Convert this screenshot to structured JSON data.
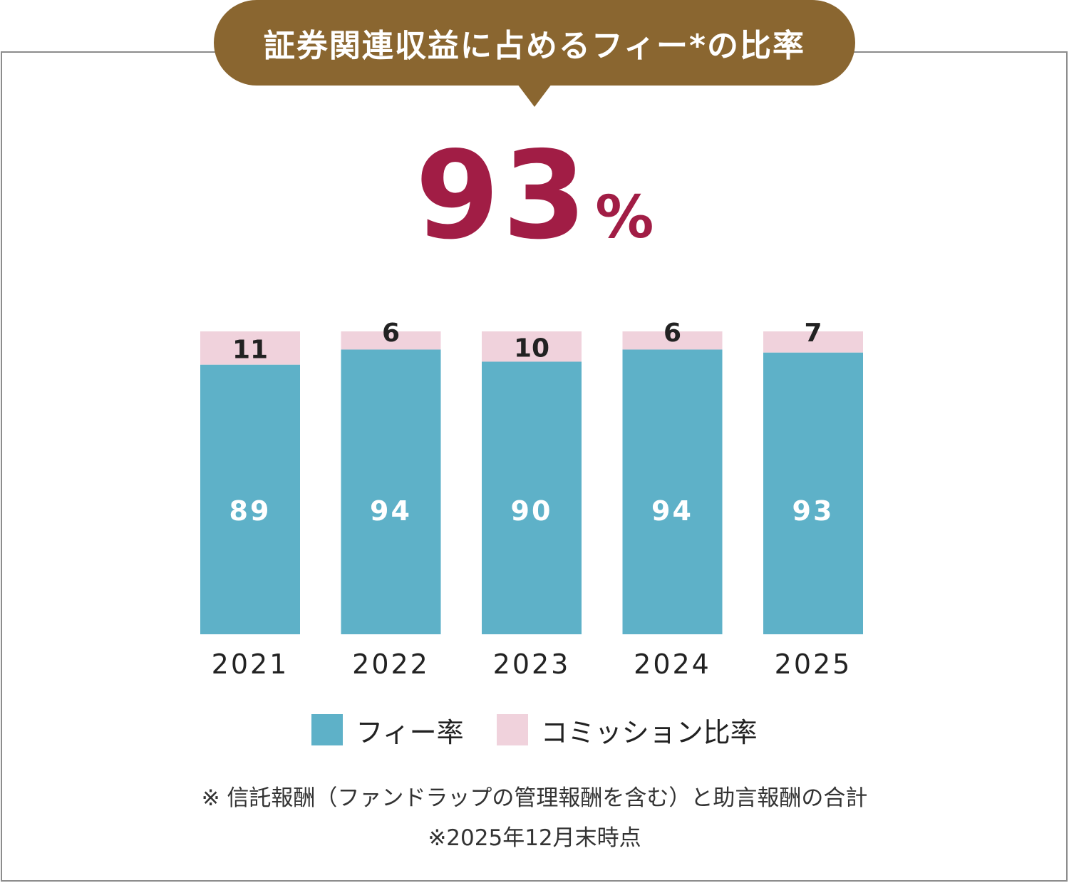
{
  "title": "証券関連収益に占めるフィー*の比率",
  "headline": {
    "value": "93",
    "unit": "%"
  },
  "colors": {
    "fee": "#5eb1c8",
    "commission": "#f0d2dc",
    "accent": "#a11d45",
    "bubble": "#8a6630"
  },
  "legend": {
    "fee_label": "フィー率",
    "commission_label": "コミッション比率"
  },
  "notes": {
    "line1": "※ 信託報酬（ファンドラップの管理報酬を含む）と助言報酬の合計",
    "line2": "※2025年12月末時点"
  },
  "chart_data": {
    "type": "bar",
    "stacked": true,
    "categories": [
      "2021",
      "2022",
      "2023",
      "2024",
      "2025"
    ],
    "series": [
      {
        "name": "フィー率",
        "values": [
          89,
          94,
          90,
          94,
          93
        ]
      },
      {
        "name": "コミッション比率",
        "values": [
          11,
          6,
          10,
          6,
          7
        ]
      }
    ],
    "ylim": [
      0,
      100
    ]
  }
}
